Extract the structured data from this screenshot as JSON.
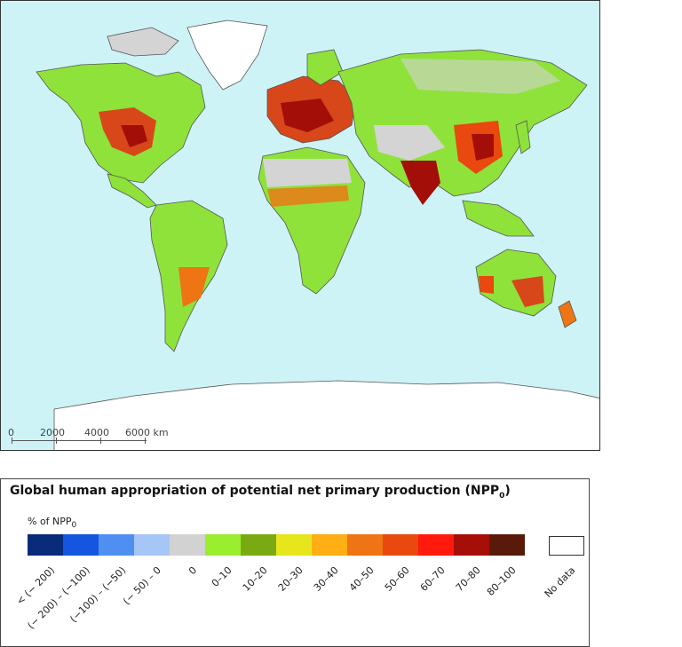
{
  "map": {
    "scale_bar": {
      "ticks": [
        "0",
        "2000",
        "4000",
        "6000 km"
      ]
    }
  },
  "legend": {
    "title_main": "Global human appropriation of potential net primary production (NPP",
    "title_sub": "0",
    "title_close": ")",
    "unit_main": "% of NPP",
    "unit_sub": "0",
    "categories": [
      {
        "label": "< (− 200)",
        "color": "#0a2a7a"
      },
      {
        "label": "(− 200) – (−100)",
        "color": "#1556e0"
      },
      {
        "label": "(−100) – (−50)",
        "color": "#4f8ff2"
      },
      {
        "label": "(− 50) – 0",
        "color": "#a7c6f8"
      },
      {
        "label": "0",
        "color": "#d2d2d2"
      },
      {
        "label": "0–10",
        "color": "#99ef2e"
      },
      {
        "label": "10–20",
        "color": "#7aaa12"
      },
      {
        "label": "20–30",
        "color": "#e7e61c"
      },
      {
        "label": "30–40",
        "color": "#ffae13"
      },
      {
        "label": "40–50",
        "color": "#ee7414"
      },
      {
        "label": "50–60",
        "color": "#e9480f"
      },
      {
        "label": "60–70",
        "color": "#ff1a0d"
      },
      {
        "label": "70–80",
        "color": "#a60e08"
      },
      {
        "label": "80–100",
        "color": "#5a1a0a"
      }
    ],
    "no_data_label": "No data",
    "no_data_color": "#ffffff"
  }
}
